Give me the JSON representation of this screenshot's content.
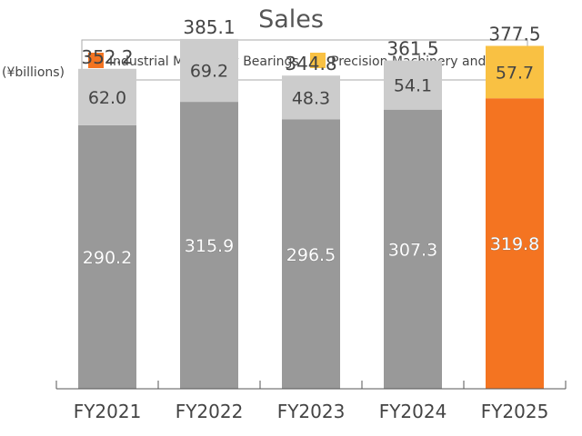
{
  "chart_data": {
    "type": "bar",
    "stacked": true,
    "title": "Sales",
    "unit_label": "(¥billions)",
    "categories": [
      "FY2021",
      "FY2022",
      "FY2023",
      "FY2024",
      "FY2025"
    ],
    "series": [
      {
        "name": "Industrial Machinery Bearings",
        "values": [
          290.2,
          315.9,
          296.5,
          307.3,
          319.8
        ]
      },
      {
        "name": "Precision Machinery and Parts",
        "values": [
          62.0,
          69.2,
          48.3,
          54.1,
          57.7
        ]
      }
    ],
    "totals": [
      "352.2",
      "385.1",
      "344.8",
      "361.5",
      "377.5"
    ],
    "primary_labels": [
      "290.2",
      "315.9",
      "296.5",
      "307.3",
      "319.8"
    ],
    "secondary_labels": [
      "62.0",
      "69.2",
      "48.3",
      "54.1",
      "57.7"
    ],
    "ylim": [
      0,
      430
    ],
    "legend_position": "top",
    "grid": false,
    "highlight_index": 4,
    "colors": {
      "primary_gray": "#999999",
      "secondary_gray": "#cccccc",
      "primary_highlight": "#f47421",
      "secondary_highlight": "#f9c143"
    }
  }
}
